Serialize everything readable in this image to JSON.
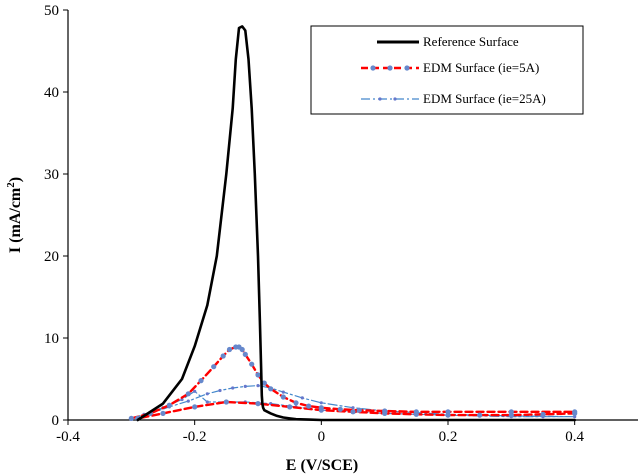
{
  "chart_data": {
    "type": "line",
    "title": "",
    "xlabel": "E (V/SCE)",
    "ylabel": "I (mA/cm",
    "ylabel_sup": "2",
    "ylabel_close": ")",
    "xlim": [
      -0.4,
      0.5
    ],
    "ylim": [
      0,
      50
    ],
    "xticks": [
      "-0.4",
      "-0.2",
      "0",
      "0.2",
      "0.4"
    ],
    "xtick_values": [
      -0.4,
      -0.2,
      0,
      0.2,
      0.4
    ],
    "yticks": [
      "0",
      "10",
      "20",
      "30",
      "40",
      "50"
    ],
    "ytick_values": [
      0,
      10,
      20,
      30,
      40,
      50
    ],
    "grid": false,
    "legend_position": "top-right",
    "series": [
      {
        "name": "Reference Surface",
        "color": "#000000",
        "style": "solid",
        "x": [
          -0.29,
          -0.25,
          -0.22,
          -0.2,
          -0.18,
          -0.165,
          -0.15,
          -0.14,
          -0.135,
          -0.13,
          -0.125,
          -0.12,
          -0.115,
          -0.11,
          -0.105,
          -0.1,
          -0.097,
          -0.095,
          -0.094,
          -0.093,
          -0.092,
          -0.09,
          -0.085,
          -0.08,
          -0.07,
          -0.06,
          -0.05,
          -0.04,
          -0.02,
          0,
          0.05,
          0.1,
          0.2,
          0.3,
          0.4
        ],
        "y": [
          0,
          2,
          5,
          9,
          14,
          20,
          30,
          38,
          44,
          47.8,
          48,
          47.5,
          44,
          38,
          30,
          20,
          12,
          6,
          3,
          2,
          1.5,
          1.2,
          1.0,
          0.8,
          0.5,
          0.3,
          0.2,
          0.1,
          0.05,
          0,
          0,
          0,
          0,
          0,
          0
        ]
      },
      {
        "name": "EDM Surface  (ie=5A)",
        "color": "#ff0000",
        "marker_color": "#6688cc",
        "style": "dashed",
        "x": [
          -0.3,
          -0.27,
          -0.24,
          -0.21,
          -0.19,
          -0.17,
          -0.155,
          -0.145,
          -0.135,
          -0.13,
          -0.125,
          -0.12,
          -0.11,
          -0.1,
          -0.09,
          -0.08,
          -0.06,
          -0.04,
          -0.02,
          0,
          0.03,
          0.06,
          0.1,
          0.15,
          0.2,
          0.3,
          0.4,
          0.4,
          0.35,
          0.3,
          0.25,
          0.2,
          0.15,
          0.1,
          0.05,
          0,
          -0.05,
          -0.1,
          -0.15,
          -0.2,
          -0.25,
          -0.29
        ],
        "y": [
          0.2,
          0.8,
          1.8,
          3.2,
          4.8,
          6.5,
          7.8,
          8.6,
          8.9,
          8.9,
          8.6,
          8.0,
          6.8,
          5.5,
          4.5,
          3.8,
          2.8,
          2.1,
          1.7,
          1.5,
          1.3,
          1.2,
          1.1,
          1.0,
          1.0,
          1.0,
          1.0,
          0.8,
          0.7,
          0.6,
          0.6,
          0.6,
          0.7,
          0.8,
          1.0,
          1.2,
          1.6,
          2.0,
          2.2,
          1.6,
          0.8,
          0.2
        ]
      },
      {
        "name": "EDM Surface (ie=25A)",
        "color": "#4488cc",
        "marker_color": "#6677cc",
        "style": "dash-dot",
        "x": [
          -0.3,
          -0.27,
          -0.24,
          -0.21,
          -0.18,
          -0.16,
          -0.14,
          -0.12,
          -0.1,
          -0.08,
          -0.06,
          -0.03,
          0,
          0.05,
          0.1,
          0.15,
          0.2,
          0.3,
          0.4,
          0.35,
          0.3,
          0.25,
          0.2,
          0.15,
          0.1,
          0.05,
          0,
          -0.04,
          -0.08,
          -0.12,
          -0.15,
          -0.18,
          -0.2,
          -0.22,
          -0.25,
          -0.28,
          -0.3
        ],
        "y": [
          0.2,
          0.8,
          1.6,
          2.3,
          3.2,
          3.6,
          3.9,
          4.1,
          4.2,
          3.9,
          3.4,
          2.7,
          2.1,
          1.5,
          1.1,
          0.9,
          0.7,
          0.5,
          0.4,
          0.4,
          0.4,
          0.5,
          0.6,
          0.7,
          0.8,
          1.0,
          1.2,
          1.6,
          2.0,
          2.2,
          2.2,
          2.2,
          3.5,
          2.5,
          1.5,
          0.7,
          0.2
        ]
      }
    ]
  }
}
